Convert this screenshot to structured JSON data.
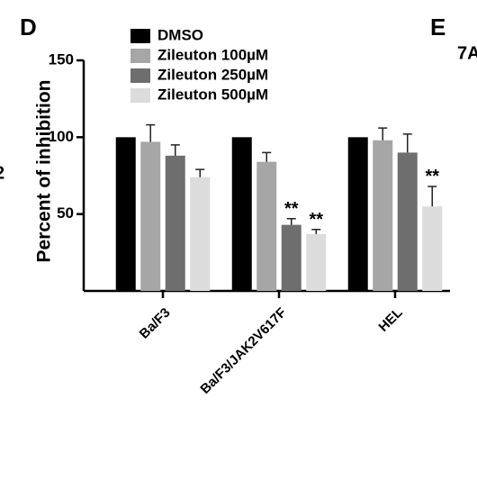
{
  "chart_data": {
    "type": "bar",
    "panel_label": "D",
    "y_label": "Percent of inhibition",
    "categories": [
      "Ba/F3",
      "Ba/F3/JAK2V617F",
      "HEL"
    ],
    "series": [
      {
        "name": "DMSO",
        "color": "#000000",
        "values": [
          100,
          100,
          100
        ],
        "errors": [
          0,
          0,
          0
        ]
      },
      {
        "name": "Zileuton 100µM",
        "color": "#a6a6a6",
        "values": [
          97,
          84,
          98
        ],
        "errors": [
          11,
          6,
          8
        ]
      },
      {
        "name": "Zileuton 250µM",
        "color": "#6e6e6e",
        "values": [
          88,
          43,
          90
        ],
        "errors": [
          7,
          4,
          12
        ],
        "significance": [
          null,
          "**",
          null
        ]
      },
      {
        "name": "Zileuton 500µM",
        "color": "#dcdcdc",
        "values": [
          74,
          37,
          55
        ],
        "errors": [
          5,
          3,
          13
        ],
        "significance": [
          null,
          "**",
          "**"
        ]
      }
    ],
    "ylim": [
      0,
      150
    ],
    "yticks": [
      50,
      100,
      150
    ]
  },
  "neighbor_labels": [
    "E",
    "7A",
    "2"
  ]
}
